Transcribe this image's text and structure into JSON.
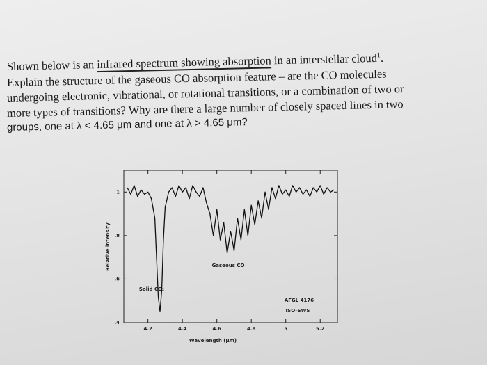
{
  "document": {
    "line1": {
      "before": "Shown below is an ",
      "underlined": "infrared spectrum showing absorption",
      "after": " in an interstellar cloud",
      "footnote": "1",
      "end": "."
    },
    "line2": "Explain the structure of the gaseous CO absorption feature – are the CO molecules",
    "line3": "undergoing electronic, vibrational, or rotational transitions, or a combination of two or",
    "line4": "more types of transitions? Why are there a large number of closely spaced lines in two",
    "line5": "groups, one at λ < 4.65 μm and one at λ > 4.65 μm?"
  },
  "chart_data": {
    "type": "line",
    "xlabel": "Wavelength (μm)",
    "ylabel": "Relative intensity",
    "color": "#111111",
    "xlim": [
      4.06,
      5.3
    ],
    "ylim": [
      0.4,
      1.1
    ],
    "xticks": [
      4.2,
      4.4,
      4.6,
      4.8,
      5,
      5.2
    ],
    "yticks": [
      {
        "value": 0.4,
        "label": ".4"
      },
      {
        "value": 0.6,
        "label": ".6"
      },
      {
        "value": 0.8,
        "label": ".8"
      },
      1
    ],
    "annotations": [
      "Gaseous CO",
      "Solid CO₂",
      "AFGL 4176",
      "ISO–SWS"
    ],
    "x": [
      4.08,
      4.1,
      4.12,
      4.14,
      4.16,
      4.18,
      4.2,
      4.22,
      4.24,
      4.25,
      4.26,
      4.27,
      4.28,
      4.29,
      4.3,
      4.32,
      4.34,
      4.36,
      4.38,
      4.4,
      4.42,
      4.44,
      4.46,
      4.48,
      4.5,
      4.52,
      4.54,
      4.56,
      4.58,
      4.6,
      4.62,
      4.64,
      4.66,
      4.68,
      4.7,
      4.72,
      4.74,
      4.76,
      4.78,
      4.8,
      4.82,
      4.84,
      4.86,
      4.88,
      4.9,
      4.92,
      4.94,
      4.96,
      4.98,
      5.0,
      5.02,
      5.04,
      5.06,
      5.08,
      5.1,
      5.12,
      5.14,
      5.16,
      5.18,
      5.2,
      5.22,
      5.24,
      5.26,
      5.28
    ],
    "values": [
      1.02,
      0.99,
      1.03,
      0.98,
      1.01,
      0.99,
      1.0,
      0.97,
      0.88,
      0.7,
      0.52,
      0.45,
      0.55,
      0.78,
      0.93,
      1.0,
      1.02,
      0.98,
      1.03,
      1.0,
      1.02,
      0.97,
      1.03,
      1.0,
      0.98,
      1.02,
      0.95,
      0.9,
      0.8,
      0.92,
      0.78,
      0.86,
      0.72,
      0.82,
      0.73,
      0.88,
      0.78,
      0.92,
      0.8,
      0.94,
      0.85,
      0.96,
      0.88,
      1.0,
      0.92,
      1.02,
      0.97,
      1.03,
      0.99,
      1.01,
      0.98,
      1.03,
      1.0,
      1.02,
      0.99,
      1.01,
      0.98,
      1.02,
      1.0,
      1.03,
      0.99,
      1.02,
      1.0,
      1.01
    ]
  }
}
